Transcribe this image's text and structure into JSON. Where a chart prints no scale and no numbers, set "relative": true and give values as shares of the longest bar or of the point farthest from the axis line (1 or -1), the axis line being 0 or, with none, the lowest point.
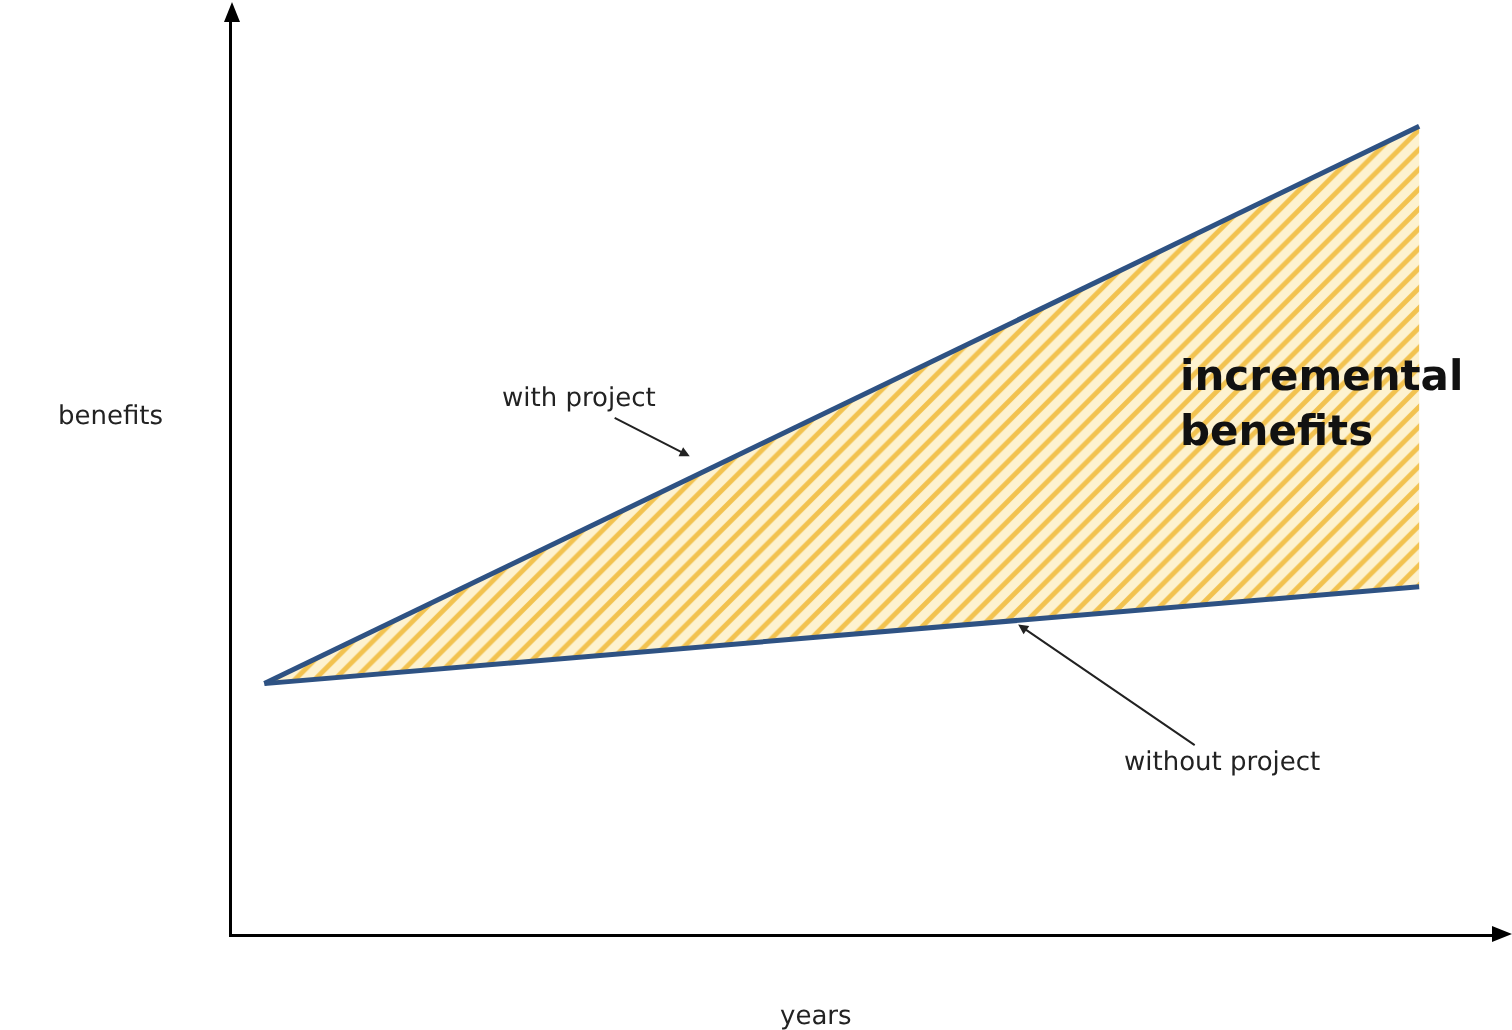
{
  "chart_data": {
    "type": "line",
    "relative": true,
    "categories": [
      null,
      null
    ],
    "xlabel": "years",
    "ylabel": "benefits",
    "grid": false,
    "legend": false,
    "marker": "none",
    "line_style": "solid",
    "series": [
      {
        "name": "with project",
        "color": "#2e5283",
        "values": [
          0.31,
          1
        ],
        "lower": [
          0.31,
          0.43
        ],
        "upper": [
          0.31,
          1
        ]
      },
      {
        "name": "without project",
        "color": "#2e5283",
        "values": [
          0.31,
          0.43
        ]
      }
    ],
    "annotations": [
      "incremental benefits"
    ]
  }
}
